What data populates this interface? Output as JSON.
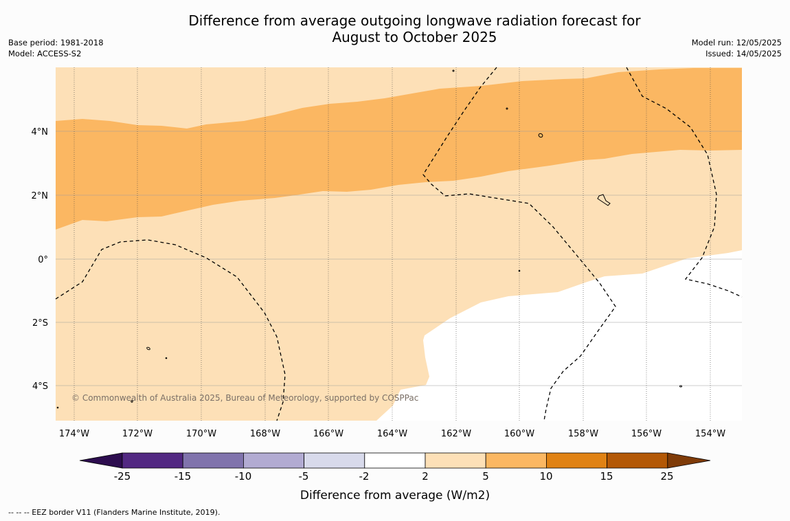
{
  "title": {
    "line1": "Difference from average outgoing longwave radiation forecast for",
    "line2": "August to October 2025"
  },
  "meta_left": {
    "base_period": "Base period: 1981-2018",
    "model": "Model: ACCESS-S2"
  },
  "meta_right": {
    "model_run": "Model run: 12/05/2025",
    "issued": "Issued: 14/05/2025"
  },
  "map": {
    "lat_labels": [
      "4°N",
      "2°N",
      "0°",
      "2°S",
      "4°S"
    ],
    "lon_labels": [
      "174°W",
      "172°W",
      "170°W",
      "168°W",
      "166°W",
      "164°W",
      "162°W",
      "160°W",
      "158°W",
      "156°W",
      "154°W"
    ],
    "copyright": "© Commonwealth of Australia 2025, Bureau of Meteorology, supported by COSPPac",
    "colors": {
      "band_2_5": "#fde0b7",
      "band_5_10": "#fbb762",
      "neutral": "#ffffff"
    }
  },
  "colorbar": {
    "ticks": [
      "-25",
      "-15",
      "-10",
      "-5",
      "-2",
      "2",
      "5",
      "10",
      "15",
      "25"
    ],
    "colors": [
      "#2d0d4f",
      "#522882",
      "#8073ac",
      "#b2abd2",
      "#d8daeb",
      "#ffffff",
      "#fde0b7",
      "#fbb762",
      "#e08214",
      "#b35806",
      "#7f3b08"
    ],
    "title": "Difference from average (W/m2)"
  },
  "footer": {
    "legend": "--  --  -- EEZ border V11 (Flanders Marine Institute, 2019)."
  }
}
